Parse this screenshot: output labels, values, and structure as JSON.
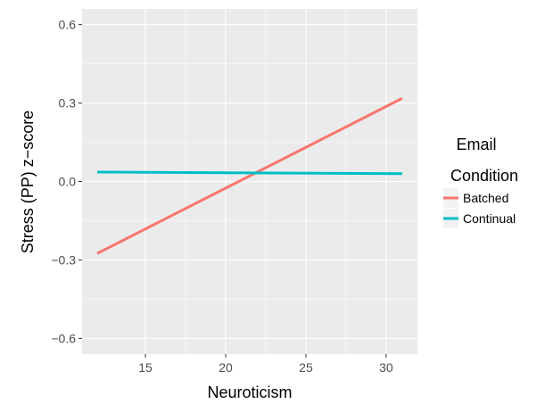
{
  "chart_data": {
    "type": "line",
    "title": "",
    "xlabel": "Neuroticism",
    "ylabel": "Stress (PP) z−score",
    "xlim": [
      11.05,
      31.95
    ],
    "ylim": [
      -0.66,
      0.66
    ],
    "x_ticks": [
      15,
      20,
      25,
      30
    ],
    "x_tick_labels": [
      "15",
      "20",
      "25",
      "30"
    ],
    "y_ticks": [
      -0.6,
      -0.3,
      0.0,
      0.3,
      0.6
    ],
    "y_tick_labels": [
      "−0.6",
      "−0.3",
      "0.0",
      "0.3",
      "0.6"
    ],
    "grid": true,
    "background": "#ebebeb",
    "series": [
      {
        "name": "Batched",
        "color": "#f8766d",
        "x": [
          12,
          31
        ],
        "y": [
          -0.275,
          0.318
        ]
      },
      {
        "name": "Continual",
        "color": "#00bfc4",
        "x": [
          12,
          31
        ],
        "y": [
          0.036,
          0.03
        ]
      }
    ],
    "legend": {
      "title_lines": [
        "Email",
        "Condition"
      ],
      "position": "right"
    }
  }
}
